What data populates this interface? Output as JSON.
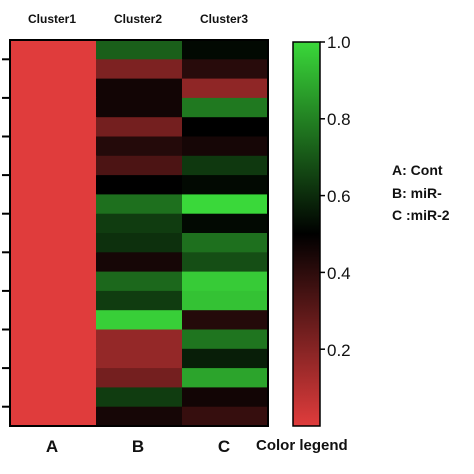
{
  "chart_data": {
    "type": "heatmap",
    "columns": [
      "Cluster1",
      "Cluster2",
      "Cluster3"
    ],
    "x_tick_labels": [
      "A",
      "B",
      "C"
    ],
    "colorbar": {
      "title": "Color legend",
      "ticks": [
        "1.0",
        "0.8",
        "0.6",
        "0.4",
        "0.2"
      ],
      "tick_values": [
        1.0,
        0.8,
        0.6,
        0.4,
        0.2
      ],
      "range": [
        0.0,
        1.0
      ],
      "low_color": "#e03c3c",
      "mid_color": "#000000",
      "high_color": "#3ad83a"
    },
    "annotations": [
      "A: Cont",
      "B: miR-",
      "C :miR-2"
    ],
    "values": [
      [
        0.0,
        0.72,
        0.52
      ],
      [
        0.0,
        0.22,
        0.41
      ],
      [
        0.0,
        0.46,
        0.18
      ],
      [
        0.0,
        0.46,
        0.78
      ],
      [
        0.0,
        0.24,
        0.5
      ],
      [
        0.0,
        0.42,
        0.45
      ],
      [
        0.0,
        0.33,
        0.63
      ],
      [
        0.0,
        0.5,
        0.52
      ],
      [
        0.0,
        0.76,
        1.0
      ],
      [
        0.0,
        0.64,
        0.52
      ],
      [
        0.0,
        0.61,
        0.76
      ],
      [
        0.0,
        0.45,
        0.68
      ],
      [
        0.0,
        0.74,
        0.97
      ],
      [
        0.0,
        0.64,
        0.95
      ],
      [
        0.0,
        0.98,
        0.42
      ],
      [
        0.0,
        0.17,
        0.77
      ],
      [
        0.0,
        0.17,
        0.57
      ],
      [
        0.0,
        0.24,
        0.88
      ],
      [
        0.0,
        0.64,
        0.46
      ],
      [
        0.0,
        0.45,
        0.38
      ]
    ]
  }
}
